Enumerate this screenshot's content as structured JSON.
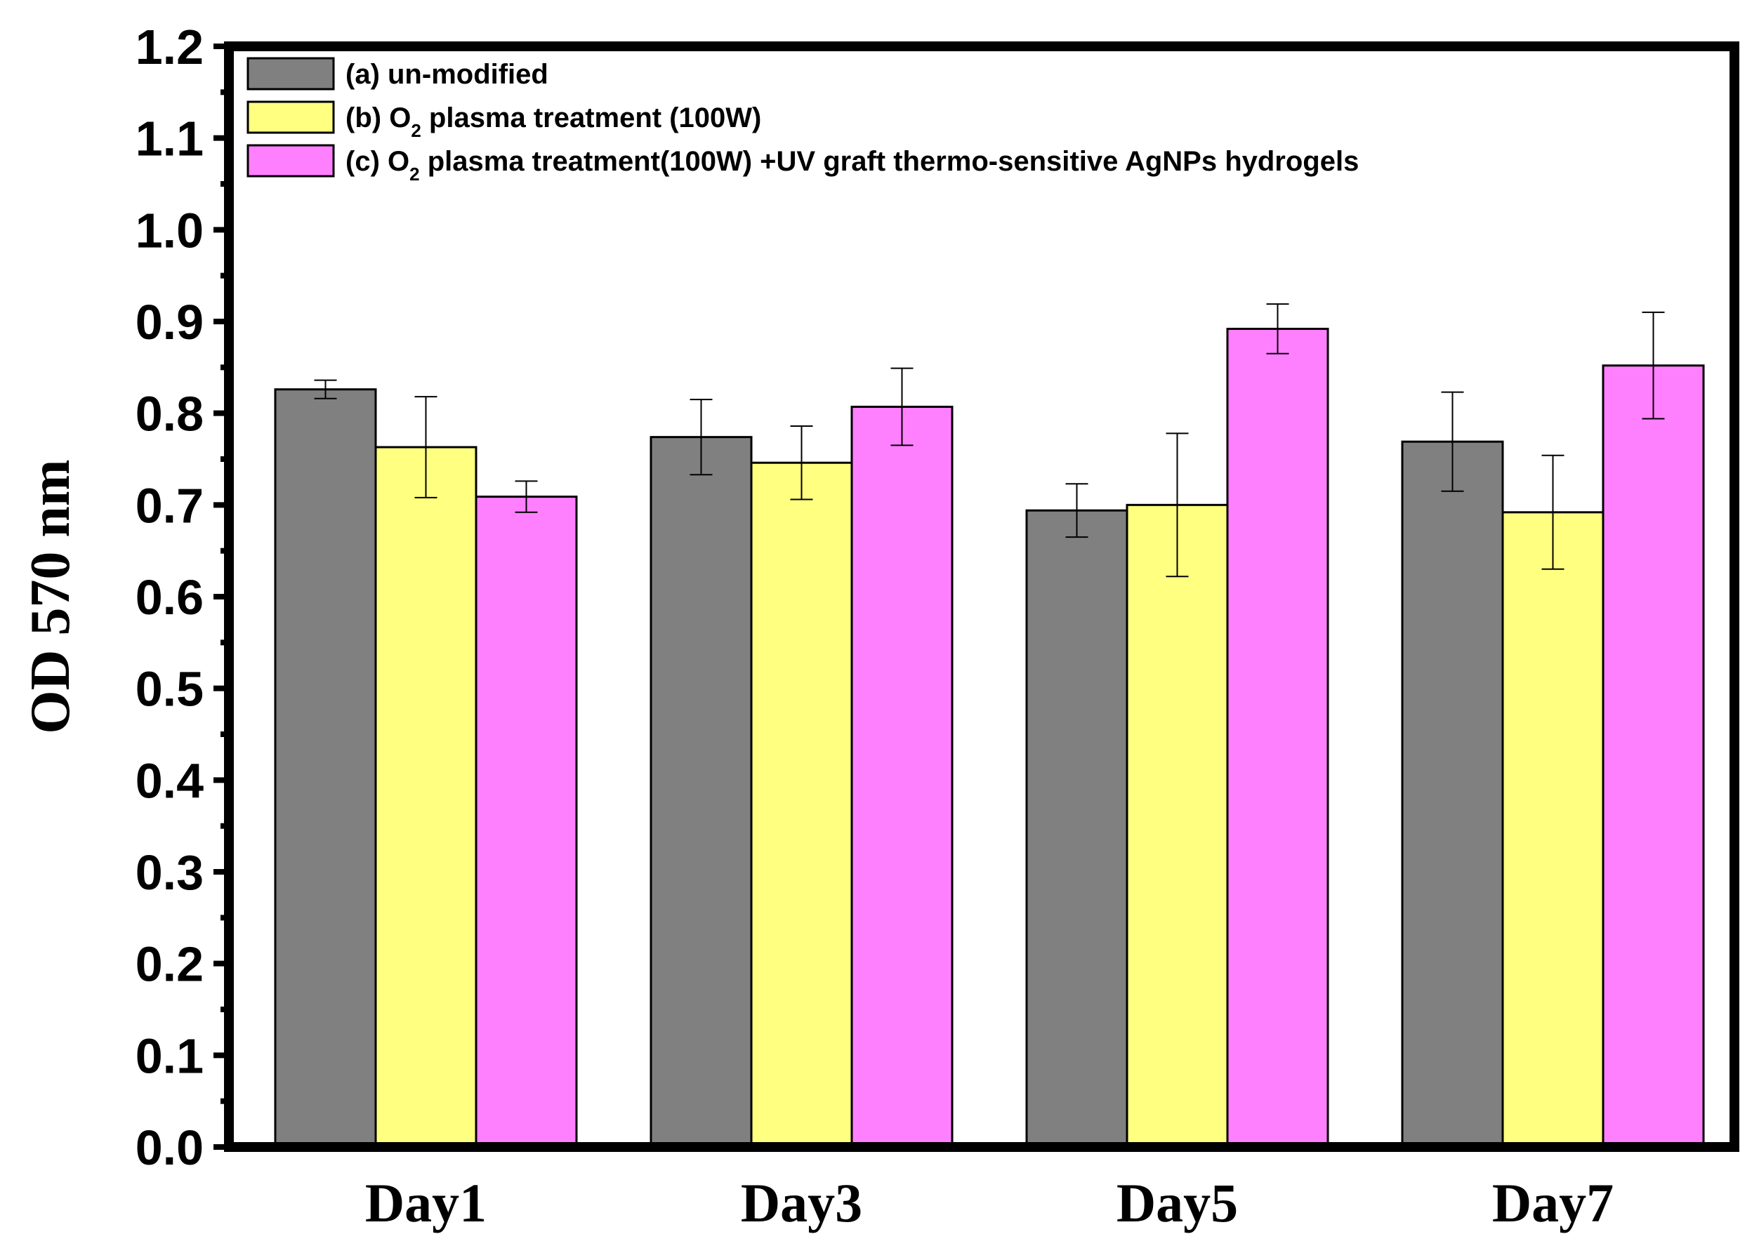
{
  "chart_data": {
    "type": "bar",
    "title": "",
    "xlabel": "",
    "ylabel": "OD 570 nm",
    "ylim": [
      0.0,
      1.2
    ],
    "yticks": [
      "0.0",
      "0.1",
      "0.2",
      "0.3",
      "0.4",
      "0.5",
      "0.6",
      "0.7",
      "0.8",
      "0.9",
      "1.0",
      "1.1",
      "1.2"
    ],
    "grid": false,
    "legend_position": "top-left",
    "categories": [
      "Day1",
      "Day3",
      "Day5",
      "Day7"
    ],
    "series": [
      {
        "name": "(a) un-modified",
        "legend": {
          "prefix": "(a) un-modified",
          "sub": "",
          "suffix": ""
        },
        "color": "#808080",
        "values": [
          0.826,
          0.774,
          0.694,
          0.769
        ],
        "errors": [
          0.01,
          0.041,
          0.029,
          0.054
        ]
      },
      {
        "name": "(b) O2 plasma treatment (100W)",
        "legend": {
          "prefix": "(b) O",
          "sub": "2",
          "suffix": " plasma treatment (100W)"
        },
        "color": "#FFFF80",
        "values": [
          0.763,
          0.746,
          0.7,
          0.692
        ],
        "errors": [
          0.055,
          0.04,
          0.078,
          0.062
        ]
      },
      {
        "name": "(c) O2 plasma treatment(100W) +UV graft thermo-sensitive AgNPs hydrogels",
        "legend": {
          "prefix": "(c) O",
          "sub": "2",
          "suffix": " plasma treatment(100W) +UV graft thermo-sensitive AgNPs hydrogels"
        },
        "color": "#FF80FF",
        "values": [
          0.709,
          0.807,
          0.892,
          0.852
        ],
        "errors": [
          0.017,
          0.042,
          0.027,
          0.058
        ]
      }
    ]
  }
}
